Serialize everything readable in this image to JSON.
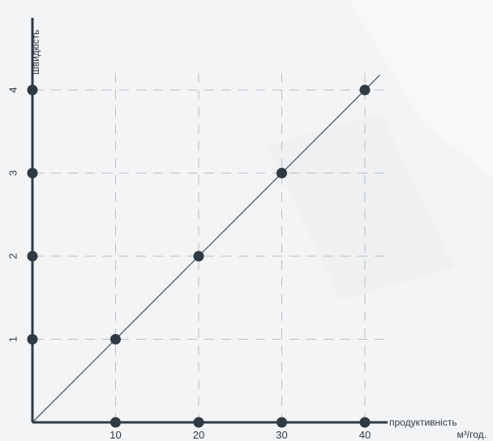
{
  "chart_data": {
    "type": "line",
    "xlabel": "продуктивність",
    "xunit": "м³/год.",
    "ylabel": "швидкість",
    "x_ticks": [
      "10",
      "20",
      "30",
      "40"
    ],
    "y_ticks": [
      "1",
      "2",
      "3",
      "4"
    ],
    "xlim": [
      0,
      40
    ],
    "ylim": [
      0,
      4
    ],
    "grid": true,
    "series": [
      {
        "x": [
          0,
          10,
          20,
          30,
          40
        ],
        "y": [
          0,
          1,
          2,
          3,
          4
        ]
      }
    ]
  },
  "colors": {
    "axis": "#2f3a44",
    "grid": "#b9bec3",
    "line": "#4a5560",
    "marker": "#2f3a44",
    "background": "#f3f4f5"
  }
}
